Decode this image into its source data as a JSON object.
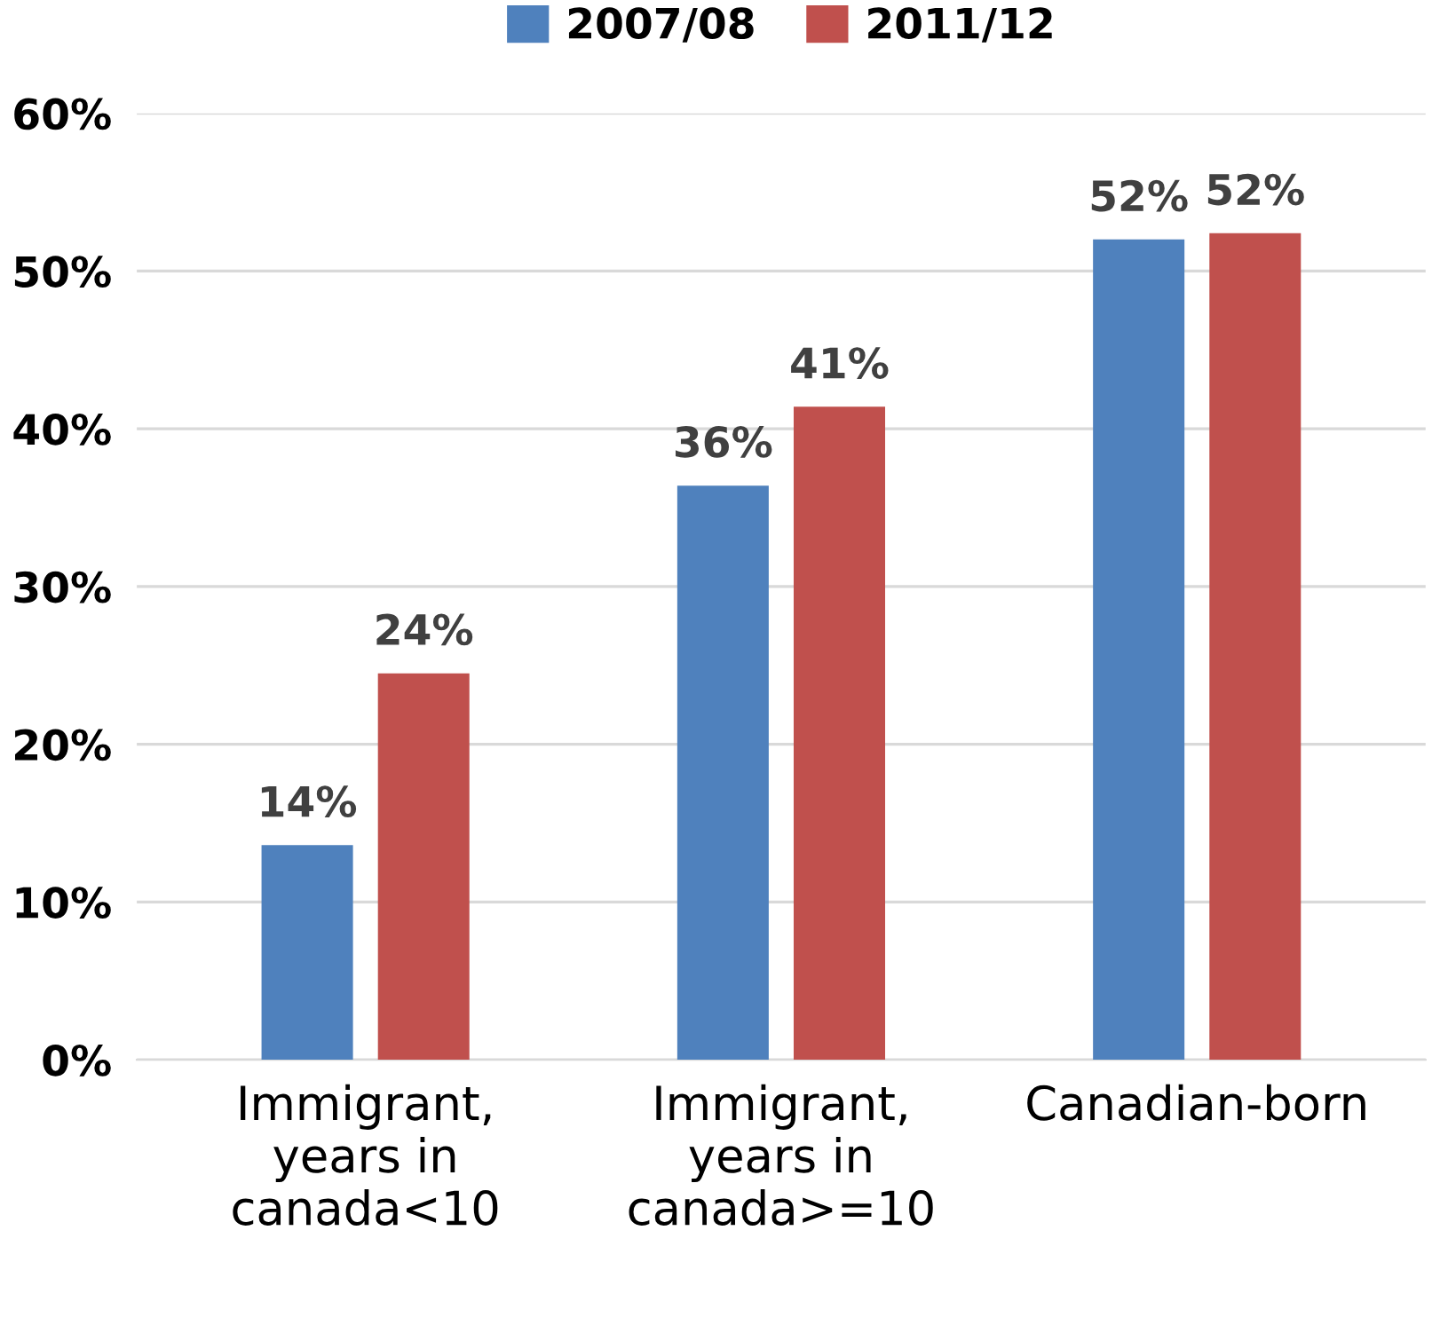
{
  "chart_data": {
    "type": "bar",
    "categories": [
      "Immigrant,\nyears in\ncanada<10",
      "Immigrant,\nyears in\ncanada>=10",
      "Canadian-born"
    ],
    "series": [
      {
        "name": "2007/08",
        "color": "#4f81bd",
        "values": [
          13.6,
          36.4,
          52.0
        ],
        "value_labels": [
          "14%",
          "36%",
          "52%"
        ]
      },
      {
        "name": "2011/12",
        "color": "#c0504d",
        "values": [
          24.5,
          41.4,
          52.4
        ],
        "value_labels": [
          "24%",
          "41%",
          "52%"
        ]
      }
    ],
    "ylim": [
      0,
      60
    ],
    "yticks": [
      {
        "value": 0,
        "label": "0%"
      },
      {
        "value": 10,
        "label": "10%"
      },
      {
        "value": 20,
        "label": "20%"
      },
      {
        "value": 30,
        "label": "30%"
      },
      {
        "value": 40,
        "label": "40%"
      },
      {
        "value": 50,
        "label": "50%"
      },
      {
        "value": 60,
        "label": "60%"
      }
    ],
    "grid": "y",
    "legend": "top"
  }
}
